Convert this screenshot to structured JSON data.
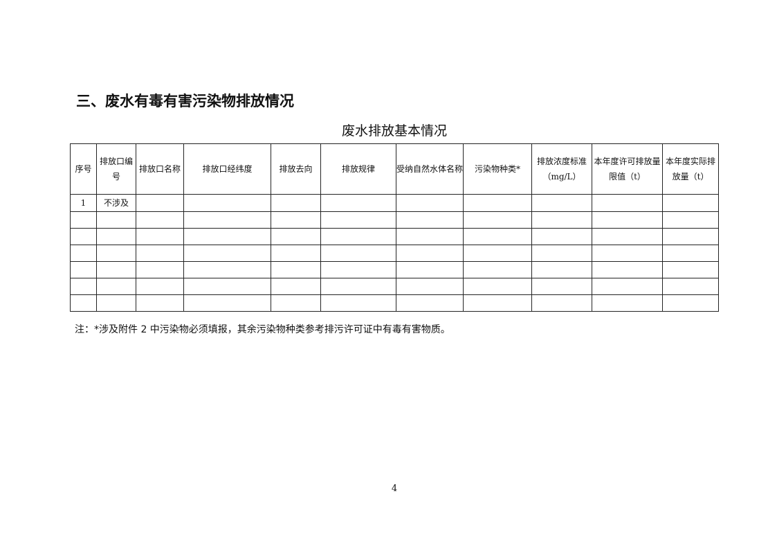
{
  "heading": "三、废水有毒有害污染物排放情况",
  "table": {
    "caption": "废水排放基本情况",
    "headers": [
      "序号",
      "排放口编号",
      "排放口名称",
      "排放口经纬度",
      "排放去向",
      "排放规律",
      "受纳自然水体名称",
      "污染物种类*",
      "排放浓度标准（mg/L）",
      "本年度许可排放量限值（t）",
      "本年度实际排放量（t）"
    ],
    "rows": [
      [
        "1",
        "不涉及",
        "",
        "",
        "",
        "",
        "",
        "",
        "",
        "",
        ""
      ],
      [
        "",
        "",
        "",
        "",
        "",
        "",
        "",
        "",
        "",
        "",
        ""
      ],
      [
        "",
        "",
        "",
        "",
        "",
        "",
        "",
        "",
        "",
        "",
        ""
      ],
      [
        "",
        "",
        "",
        "",
        "",
        "",
        "",
        "",
        "",
        "",
        ""
      ],
      [
        "",
        "",
        "",
        "",
        "",
        "",
        "",
        "",
        "",
        "",
        ""
      ],
      [
        "",
        "",
        "",
        "",
        "",
        "",
        "",
        "",
        "",
        "",
        ""
      ],
      [
        "",
        "",
        "",
        "",
        "",
        "",
        "",
        "",
        "",
        "",
        ""
      ]
    ]
  },
  "note": "注：*涉及附件 2 中污染物必须填报，其余污染物种类参考排污许可证中有毒有害物质。",
  "page_number": "4"
}
